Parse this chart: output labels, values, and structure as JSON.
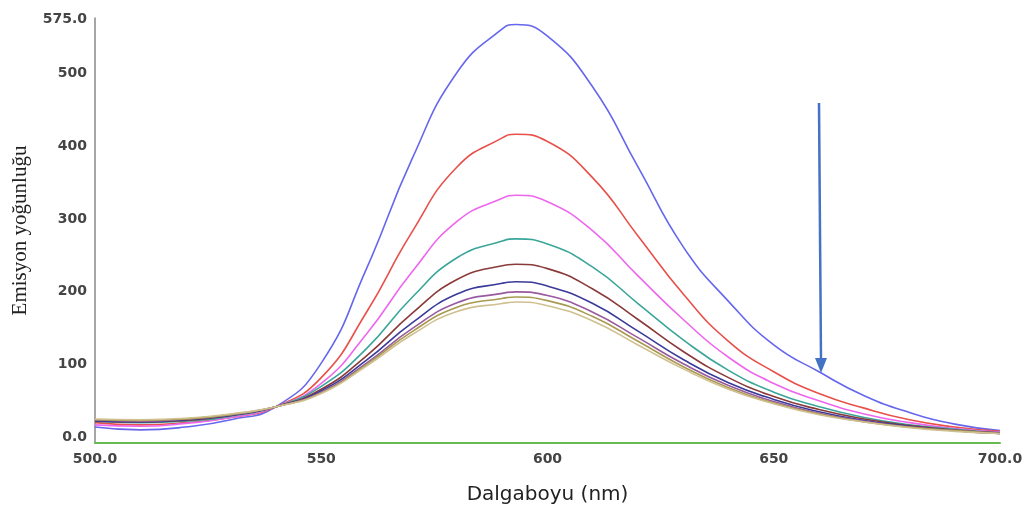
{
  "chart_data": {
    "type": "line",
    "xlabel": "Dalgaboyu (nm)",
    "ylabel": "Emisyon yoğunluğu",
    "x": [
      500,
      510,
      520,
      530,
      540,
      550,
      560,
      570,
      580,
      590,
      593,
      600,
      610,
      620,
      630,
      640,
      650,
      660,
      670,
      680,
      690,
      700
    ],
    "series": [
      {
        "color": "#6666ee",
        "values": [
          12,
          8,
          12,
          22,
          40,
          100,
          230,
          380,
          500,
          560,
          566,
          550,
          480,
          370,
          260,
          185,
          125,
          88,
          55,
          32,
          16,
          7
        ]
      },
      {
        "color": "#e8504a",
        "values": [
          18,
          15,
          18,
          25,
          40,
          80,
          170,
          280,
          370,
          410,
          415,
          405,
          355,
          275,
          195,
          130,
          88,
          58,
          38,
          22,
          12,
          6
        ]
      },
      {
        "color": "#ee66ee",
        "values": [
          15,
          13,
          17,
          25,
          40,
          72,
          140,
          225,
          295,
          327,
          331,
          322,
          282,
          220,
          160,
          108,
          72,
          48,
          30,
          18,
          10,
          5
        ]
      },
      {
        "color": "#3aa69a",
        "values": [
          20,
          18,
          20,
          27,
          40,
          68,
          120,
          190,
          245,
          268,
          271,
          264,
          232,
          182,
          132,
          90,
          60,
          40,
          25,
          15,
          9,
          4
        ]
      },
      {
        "color": "#8b3a3a",
        "values": [
          20,
          19,
          21,
          28,
          40,
          64,
          110,
          168,
          215,
          234,
          236,
          230,
          202,
          160,
          116,
          80,
          54,
          36,
          23,
          14,
          8,
          4
        ]
      },
      {
        "color": "#3a3a9a",
        "values": [
          20,
          19,
          22,
          28,
          40,
          62,
          104,
          155,
          195,
          210,
          212,
          206,
          182,
          144,
          105,
          73,
          50,
          33,
          21,
          13,
          7,
          3
        ]
      },
      {
        "color": "#9a5aa0",
        "values": [
          22,
          20,
          23,
          29,
          40,
          60,
          100,
          147,
          183,
          196,
          198,
          193,
          170,
          135,
          99,
          69,
          47,
          31,
          20,
          12,
          7,
          3
        ]
      },
      {
        "color": "#a89a50",
        "values": [
          22,
          21,
          23,
          29,
          40,
          59,
          98,
          143,
          177,
          189,
          191,
          186,
          164,
          130,
          95,
          66,
          45,
          30,
          19,
          12,
          7,
          3
        ]
      },
      {
        "color": "#d0c090",
        "values": [
          23,
          22,
          24,
          30,
          40,
          58,
          96,
          139,
          171,
          182,
          184,
          179,
          158,
          125,
          92,
          64,
          44,
          29,
          19,
          11,
          6,
          3
        ]
      }
    ],
    "xlim": [
      500,
      700
    ],
    "xticks": [
      {
        "value": 500,
        "label": "500.0"
      },
      550,
      600,
      650,
      {
        "value": 700,
        "label": "700.0"
      }
    ],
    "ylim": [
      -10,
      575
    ],
    "yticks": [
      {
        "value": 0,
        "label": "0.0"
      },
      100,
      200,
      300,
      400,
      500,
      {
        "value": 575,
        "label": "575.0"
      }
    ],
    "grid": false,
    "marker": "none",
    "line_style": "solid"
  }
}
